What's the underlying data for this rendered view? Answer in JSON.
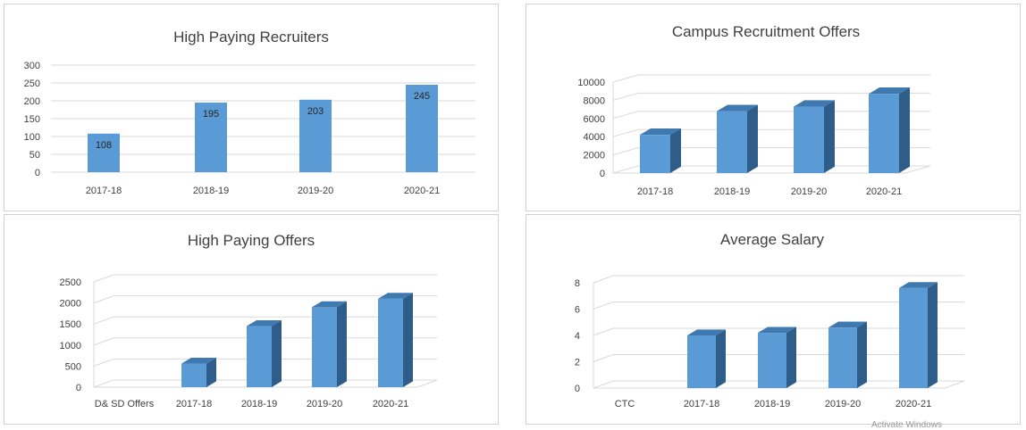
{
  "charts": [
    {
      "id": "chart-high-paying-recruiters",
      "chart_data": {
        "type": "bar",
        "title": "High Paying Recruiters",
        "categories": [
          "2017-18",
          "2018-19",
          "2019-20",
          "2020-21"
        ],
        "values": [
          108,
          195,
          203,
          245
        ],
        "data_labels": [
          "108",
          "195",
          "203",
          "245"
        ],
        "ylim": [
          0,
          300
        ],
        "yticks": [
          0,
          50,
          100,
          150,
          200,
          250,
          300
        ],
        "grid": true,
        "legend": "none",
        "bar_color": "#5b9bd5"
      }
    },
    {
      "id": "chart-campus-recruitment-offers",
      "chart_data": {
        "type": "bar",
        "style": "3d",
        "title": "Campus Recruitment Offers",
        "categories": [
          "2017-18",
          "2018-19",
          "2019-20",
          "2020-21"
        ],
        "values": [
          4200,
          6800,
          7300,
          8700
        ],
        "ylim": [
          0,
          10000
        ],
        "yticks": [
          0,
          2000,
          4000,
          6000,
          8000,
          10000
        ],
        "grid": true,
        "legend": "none",
        "bar_color": "#5b9bd5"
      }
    },
    {
      "id": "chart-high-paying-offers",
      "chart_data": {
        "type": "bar",
        "style": "3d",
        "title": "High Paying Offers",
        "row_label": "D& SD Offers",
        "categories": [
          "2017-18",
          "2018-19",
          "2019-20",
          "2020-21"
        ],
        "values": [
          560,
          1450,
          1900,
          2100
        ],
        "ylim": [
          0,
          2500
        ],
        "yticks": [
          0,
          500,
          1000,
          1500,
          2000,
          2500
        ],
        "grid": true,
        "legend": "none",
        "bar_color": "#5b9bd5"
      }
    },
    {
      "id": "chart-average-salary",
      "chart_data": {
        "type": "bar",
        "style": "3d",
        "title": "Average Salary",
        "row_label": "CTC",
        "categories": [
          "2017-18",
          "2018-19",
          "2019-20",
          "2020-21"
        ],
        "values": [
          4.0,
          4.2,
          4.6,
          7.6
        ],
        "ylim": [
          0,
          8
        ],
        "yticks": [
          0,
          2,
          4,
          6,
          8
        ],
        "grid": true,
        "legend": "none",
        "bar_color": "#5b9bd5"
      }
    }
  ],
  "watermark": "Activate Windows"
}
